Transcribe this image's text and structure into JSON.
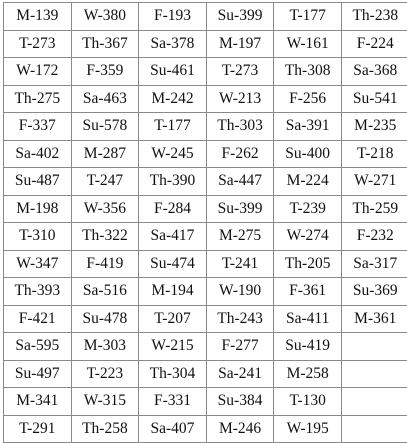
{
  "table": {
    "rows": [
      [
        "M-139",
        "W-380",
        "F-193",
        "Su-399",
        "T-177",
        "Th-238"
      ],
      [
        "T-273",
        "Th-367",
        "Sa-378",
        "M-197",
        "W-161",
        "F-224"
      ],
      [
        "W-172",
        "F-359",
        "Su-461",
        "T-273",
        "Th-308",
        "Sa-368"
      ],
      [
        "Th-275",
        "Sa-463",
        "M-242",
        "W-213",
        "F-256",
        "Su-541"
      ],
      [
        "F-337",
        "Su-578",
        "T-177",
        "Th-303",
        "Sa-391",
        "M-235"
      ],
      [
        "Sa-402",
        "M-287",
        "W-245",
        "F-262",
        "Su-400",
        "T-218"
      ],
      [
        "Su-487",
        "T-247",
        "Th-390",
        "Sa-447",
        "M-224",
        "W-271"
      ],
      [
        "M-198",
        "W-356",
        "F-284",
        "Su-399",
        "T-239",
        "Th-259"
      ],
      [
        "T-310",
        "Th-322",
        "Sa-417",
        "M-275",
        "W-274",
        "F-232"
      ],
      [
        "W-347",
        "F-419",
        "Su-474",
        "T-241",
        "Th-205",
        "Sa-317"
      ],
      [
        "Th-393",
        "Sa-516",
        "M-194",
        "W-190",
        "F-361",
        "Su-369"
      ],
      [
        "F-421",
        "Su-478",
        "T-207",
        "Th-243",
        "Sa-411",
        "M-361"
      ],
      [
        "Sa-595",
        "M-303",
        "W-215",
        "F-277",
        "Su-419",
        ""
      ],
      [
        "Su-497",
        "T-223",
        "Th-304",
        "Sa-241",
        "M-258",
        ""
      ],
      [
        "M-341",
        "W-315",
        "F-331",
        "Su-384",
        "T-130",
        ""
      ],
      [
        "T-291",
        "Th-258",
        "Sa-407",
        "M-246",
        "W-195",
        ""
      ]
    ]
  }
}
